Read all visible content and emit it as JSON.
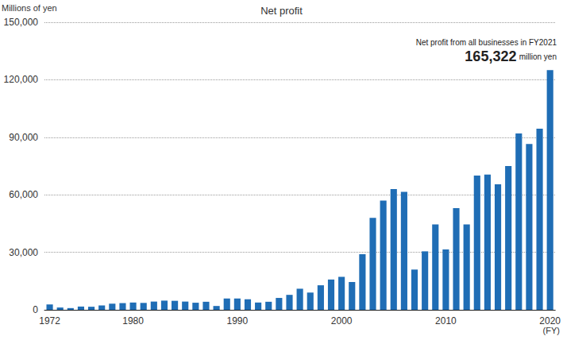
{
  "chart_data": {
    "type": "bar",
    "title": "Net profit",
    "y_label": "Millions of yen",
    "x_label": "(FY)",
    "annotation": {
      "text": "Net profit from all businesses in FY2021",
      "value": 165322,
      "value_label": "165,322",
      "unit": "million yen"
    },
    "categories": [
      "1972",
      null,
      null,
      null,
      null,
      null,
      null,
      null,
      "1980",
      null,
      null,
      null,
      null,
      null,
      null,
      null,
      null,
      null,
      "1990",
      null,
      null,
      null,
      null,
      null,
      null,
      null,
      null,
      null,
      "2000",
      null,
      null,
      null,
      null,
      null,
      null,
      null,
      null,
      null,
      "2010",
      null,
      null,
      null,
      null,
      null,
      null,
      null,
      null,
      null,
      "2020"
    ],
    "values": [
      2800,
      1200,
      900,
      1700,
      1600,
      2300,
      3200,
      3500,
      3800,
      3600,
      4300,
      4800,
      4700,
      4300,
      3700,
      4200,
      2000,
      5900,
      5900,
      5500,
      3800,
      4200,
      6200,
      7800,
      11000,
      9000,
      12800,
      15800,
      17200,
      14500,
      29000,
      48000,
      57000,
      63000,
      61500,
      21000,
      30500,
      44500,
      31500,
      53000,
      44500,
      70000,
      70500,
      65500,
      75000,
      92000,
      86500,
      94500,
      125000
    ],
    "color": "#1f6db5",
    "ylim": [
      0,
      150000
    ],
    "yticks": [
      0,
      {
        "value": 30000,
        "label": "30,000"
      },
      {
        "value": 60000,
        "label": "60,000"
      },
      {
        "value": 90000,
        "label": "90,000"
      },
      {
        "value": 120000,
        "label": "120,000"
      },
      {
        "value": 150000,
        "label": "150,000"
      }
    ],
    "grid": true
  }
}
